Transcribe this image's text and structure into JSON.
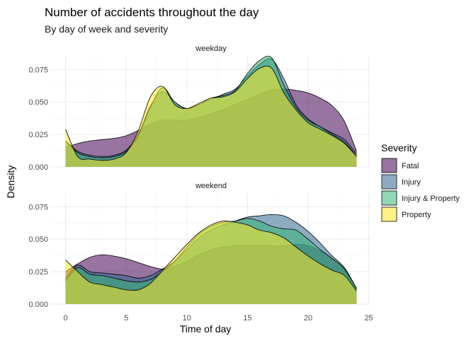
{
  "chart_data": {
    "type": "area",
    "title": "Number of accidents throughout the day",
    "subtitle": "By day of week and severity",
    "xlabel": "Time of day",
    "ylabel": "Density",
    "xlim": [
      -1.2,
      25.2
    ],
    "ylim": [
      0,
      0.085
    ],
    "xticks": [
      0,
      5,
      10,
      15,
      20,
      25
    ],
    "yticks": [
      0,
      0.025,
      0.05,
      0.075
    ],
    "ytick_labels": [
      "0.000",
      "0.025",
      "0.050",
      "0.075"
    ],
    "grid": true,
    "legend": {
      "title": "Severity",
      "position": "right",
      "entries": [
        "Fatal",
        "Injury",
        "Injury & Property",
        "Property"
      ]
    },
    "colors": {
      "Fatal": "#440154",
      "Injury": "#31688E",
      "Injury & Property": "#35B779",
      "Property": "#FDE725"
    },
    "x": [
      0,
      1,
      2,
      3,
      4,
      5,
      6,
      7,
      8,
      9,
      10,
      11,
      12,
      13,
      14,
      15,
      16,
      17,
      18,
      19,
      20,
      21,
      22,
      23,
      24
    ],
    "panels": [
      {
        "name": "weekday",
        "series": [
          {
            "name": "Fatal",
            "values": [
              0.015,
              0.018,
              0.02,
              0.021,
              0.022,
              0.024,
              0.028,
              0.033,
              0.036,
              0.036,
              0.036,
              0.038,
              0.041,
              0.044,
              0.048,
              0.052,
              0.056,
              0.059,
              0.06,
              0.059,
              0.057,
              0.053,
              0.047,
              0.035,
              0.012
            ]
          },
          {
            "name": "Injury",
            "values": [
              0.02,
              0.012,
              0.009,
              0.008,
              0.009,
              0.013,
              0.025,
              0.047,
              0.058,
              0.05,
              0.045,
              0.048,
              0.052,
              0.056,
              0.06,
              0.07,
              0.079,
              0.083,
              0.068,
              0.048,
              0.037,
              0.031,
              0.026,
              0.021,
              0.01
            ]
          },
          {
            "name": "Injury & Property",
            "values": [
              0.02,
              0.011,
              0.008,
              0.007,
              0.008,
              0.012,
              0.024,
              0.046,
              0.061,
              0.05,
              0.045,
              0.048,
              0.053,
              0.055,
              0.059,
              0.072,
              0.082,
              0.084,
              0.063,
              0.046,
              0.036,
              0.031,
              0.025,
              0.019,
              0.008
            ]
          },
          {
            "name": "Property",
            "values": [
              0.029,
              0.008,
              0.006,
              0.005,
              0.006,
              0.011,
              0.028,
              0.054,
              0.062,
              0.048,
              0.045,
              0.049,
              0.053,
              0.054,
              0.058,
              0.068,
              0.076,
              0.076,
              0.057,
              0.044,
              0.034,
              0.029,
              0.024,
              0.018,
              0.008
            ]
          }
        ]
      },
      {
        "name": "weekend",
        "series": [
          {
            "name": "Fatal",
            "values": [
              0.025,
              0.031,
              0.036,
              0.038,
              0.037,
              0.035,
              0.032,
              0.029,
              0.027,
              0.029,
              0.033,
              0.038,
              0.042,
              0.044,
              0.045,
              0.045,
              0.045,
              0.045,
              0.045,
              0.046,
              0.045,
              0.041,
              0.035,
              0.027,
              0.012
            ]
          },
          {
            "name": "Injury",
            "values": [
              0.02,
              0.03,
              0.025,
              0.024,
              0.023,
              0.022,
              0.02,
              0.022,
              0.027,
              0.033,
              0.042,
              0.051,
              0.057,
              0.061,
              0.064,
              0.067,
              0.068,
              0.069,
              0.068,
              0.063,
              0.056,
              0.047,
              0.037,
              0.028,
              0.012
            ]
          },
          {
            "name": "Injury & Property",
            "values": [
              0.018,
              0.028,
              0.023,
              0.022,
              0.02,
              0.018,
              0.017,
              0.019,
              0.025,
              0.033,
              0.044,
              0.054,
              0.06,
              0.063,
              0.064,
              0.066,
              0.064,
              0.06,
              0.058,
              0.057,
              0.05,
              0.042,
              0.035,
              0.027,
              0.012
            ]
          },
          {
            "name": "Property",
            "values": [
              0.034,
              0.025,
              0.017,
              0.015,
              0.013,
              0.011,
              0.011,
              0.016,
              0.026,
              0.036,
              0.046,
              0.055,
              0.061,
              0.064,
              0.063,
              0.061,
              0.057,
              0.055,
              0.051,
              0.044,
              0.037,
              0.031,
              0.026,
              0.022,
              0.01
            ]
          }
        ]
      }
    ]
  }
}
